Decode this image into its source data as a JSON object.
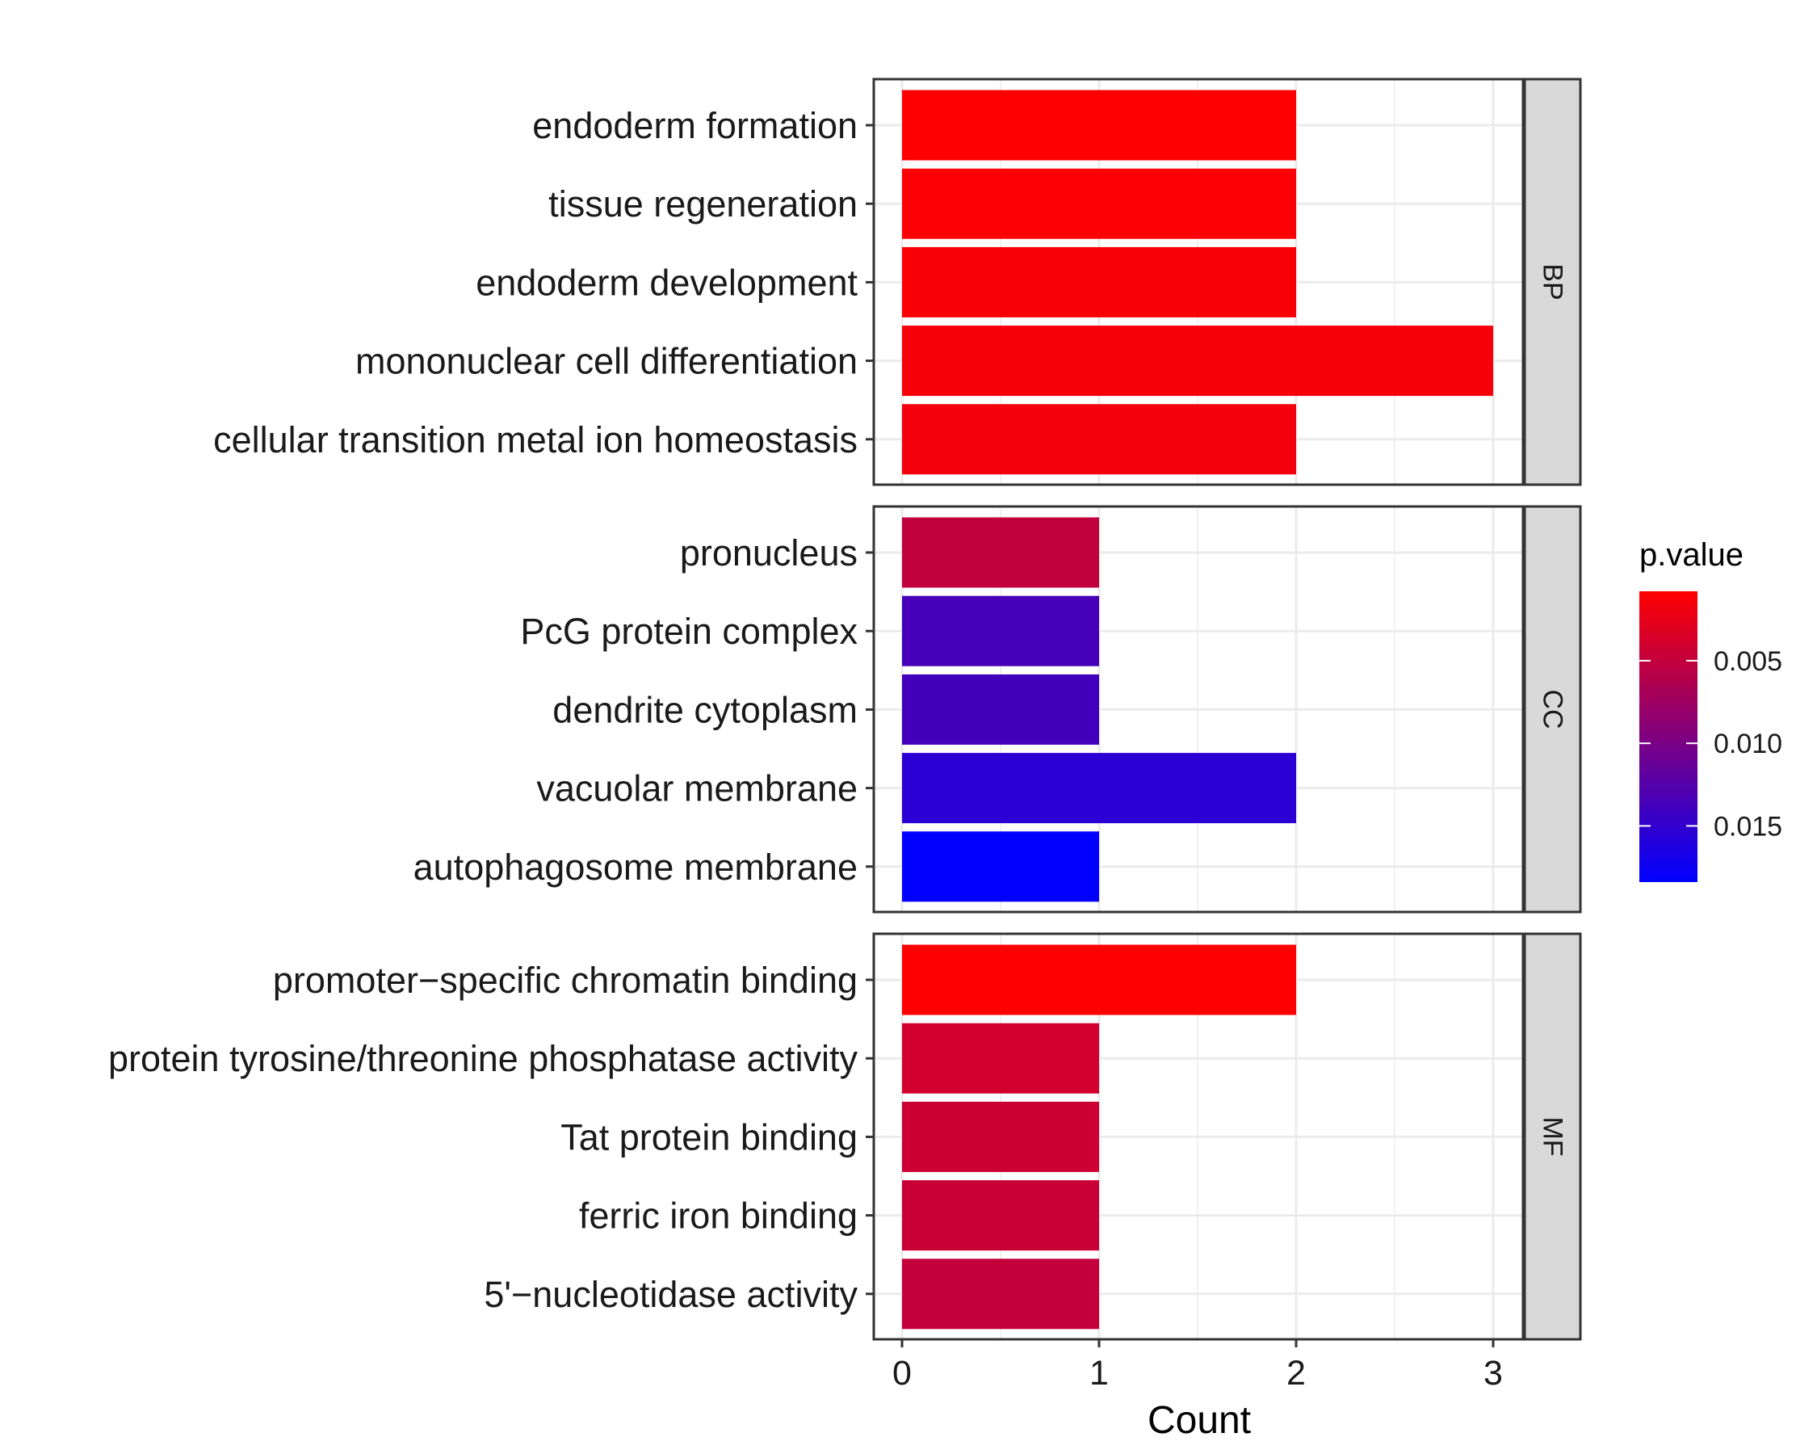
{
  "chart_data": {
    "type": "bar",
    "orientation": "horizontal",
    "xlabel": "Count",
    "xlim": [
      0,
      3.15
    ],
    "x_ticks": [
      0,
      1,
      2,
      3
    ],
    "grid": true,
    "legend_position": "right",
    "legend": {
      "title": "p.value",
      "min": 0.0008,
      "max": 0.0184,
      "ticks": [
        0.005,
        0.01,
        0.015
      ],
      "tick_labels": [
        "0.005",
        "0.010",
        "0.015"
      ],
      "low_color": "#ff0000",
      "high_color": "#0000ff"
    },
    "facets": [
      {
        "name": "BP",
        "categories": [
          "endoderm formation",
          "tissue regeneration",
          "endoderm development",
          "mononuclear cell differentiation",
          "cellular transition metal ion homeostasis"
        ],
        "values": [
          2,
          2,
          2,
          3,
          2
        ],
        "pvalues": [
          0.0009,
          0.0011,
          0.0012,
          0.0014,
          0.0016
        ]
      },
      {
        "name": "CC",
        "categories": [
          "pronucleus",
          "PcG protein complex",
          "dendrite cytoplasm",
          "vacuolar membrane",
          "autophagosome membrane"
        ],
        "values": [
          1,
          1,
          1,
          2,
          1
        ],
        "pvalues": [
          0.0051,
          0.0136,
          0.0138,
          0.0154,
          0.0183
        ]
      },
      {
        "name": "MF",
        "categories": [
          "promoter−specific chromatin binding",
          "protein tyrosine/threonine phosphatase activity",
          "Tat protein binding",
          "ferric iron binding",
          "5'−nucleotidase activity"
        ],
        "values": [
          2,
          1,
          1,
          1,
          1
        ],
        "pvalues": [
          0.0009,
          0.004,
          0.0043,
          0.0045,
          0.0049
        ]
      }
    ]
  }
}
